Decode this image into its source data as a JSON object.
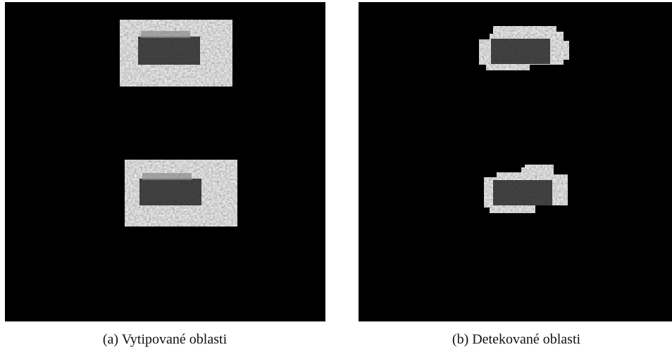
{
  "figures": [
    {
      "caption": "(a) Vytipované oblasti"
    },
    {
      "caption": "(b) Detekované oblasti"
    }
  ]
}
